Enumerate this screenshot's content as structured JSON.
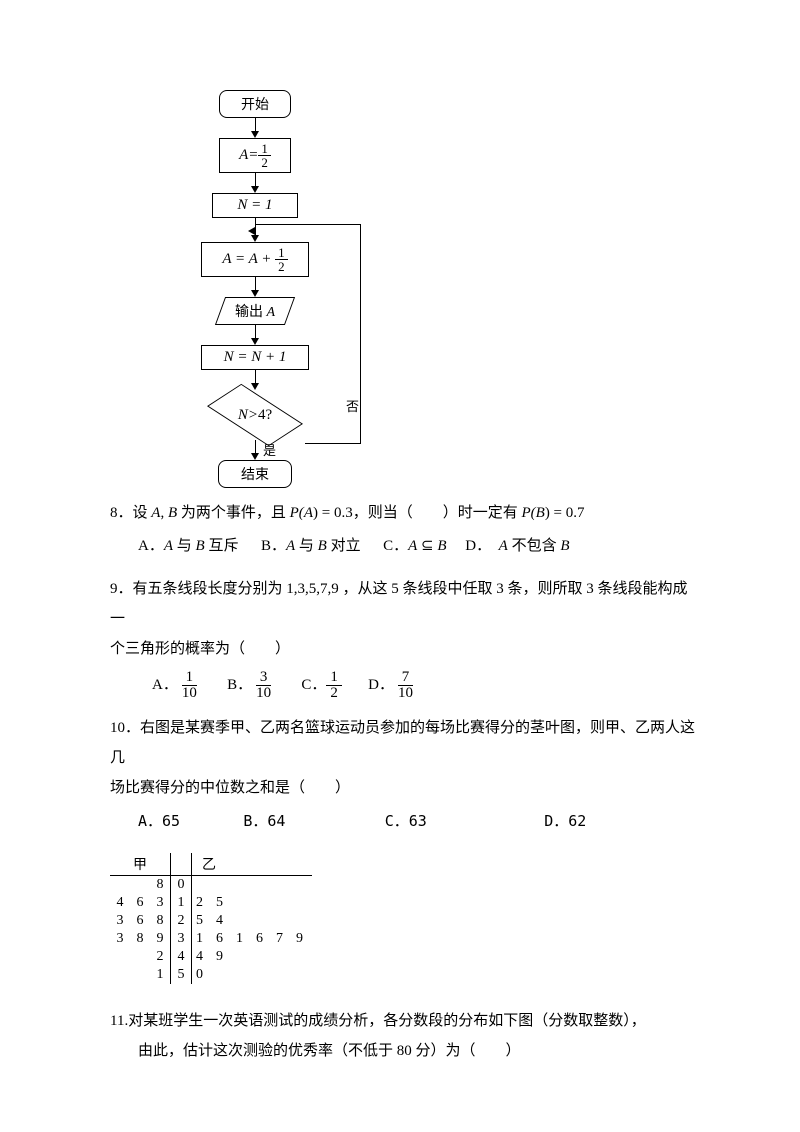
{
  "flowchart": {
    "start": "开始",
    "init_A_lhs": "A",
    "init_A_eq": "=",
    "init_A_num": "1",
    "init_A_den": "2",
    "init_N": "N = 1",
    "update_A_lhs": "A",
    "update_A_eq": " = ",
    "update_A_rhs_A": "A",
    "update_A_plus": " + ",
    "update_A_num": "1",
    "update_A_den": "2",
    "output_A_prefix": "输出 ",
    "output_A_var": "A",
    "inc_N": "N = N + 1",
    "cond_lhs": "N",
    "cond_op": " > ",
    "cond_rhs": "4",
    "cond_q": "?",
    "yes": "是",
    "no": "否",
    "end": "结束"
  },
  "q8": {
    "num": "8．",
    "pre": "设 ",
    "A": "A",
    "comma": ", ",
    "B": "B",
    "mid1": " 为两个事件，且 ",
    "PA": "P(",
    "Avar": "A",
    "PAend": ") = 0.3",
    "mid2": "，则当（　　）时一定有 ",
    "PB": "P(",
    "Bvar": "B",
    "PBend": ") = 0.7",
    "optA1": "A．",
    "optA2": "A",
    "optA3": " 与 ",
    "optA4": "B",
    "optA5": " 互斥",
    "optB1": "B．",
    "optB2": "A",
    "optB3": " 与 ",
    "optB4": "B",
    "optB5": " 对立",
    "optC1": "C．",
    "optC2": "A",
    "optC3": " ⊆ ",
    "optC4": "B",
    "optD1": "D．　",
    "optD2": "A",
    "optD3": " 不包含 ",
    "optD4": "B"
  },
  "q9": {
    "num": "9．",
    "text": "有五条线段长度分别为 1,3,5,7,9 ，从这 5 条线段中任取 3 条，则所取 3 条线段能构成一",
    "text2": "个三角形的概率为（　　）",
    "A_label": "A．",
    "A_num": "1",
    "A_den": "10",
    "B_label": "B．",
    "B_num": "3",
    "B_den": "10",
    "C_label": "C．",
    "C_num": "1",
    "C_den": "2",
    "D_label": "D．",
    "D_num": "7",
    "D_den": "10"
  },
  "q10": {
    "num": "10．",
    "text1": "右图是某赛季甲、乙两名篮球运动员参加的每场比赛得分的茎叶图，则甲、乙两人这几",
    "text2": "场比赛得分的中位数之和是（　　）",
    "A": "A．65",
    "B": "B．64",
    "C": "C．63",
    "D": "D．62"
  },
  "stemleaf": {
    "label_jia": "甲",
    "label_yi": "乙",
    "rows": [
      {
        "left": [
          "",
          "",
          "8"
        ],
        "stem": "0",
        "right": []
      },
      {
        "left": [
          "4",
          "6",
          "3"
        ],
        "stem": "1",
        "right": [
          "2",
          "5"
        ]
      },
      {
        "left": [
          "3",
          "6",
          "8"
        ],
        "stem": "2",
        "right": [
          "5",
          "4"
        ]
      },
      {
        "left": [
          "3",
          "8",
          "9"
        ],
        "stem": "3",
        "right": [
          "1",
          "6",
          "1",
          "6",
          "7",
          "9"
        ]
      },
      {
        "left": [
          "",
          "",
          "2"
        ],
        "stem": "4",
        "right": [
          "4",
          "9"
        ]
      },
      {
        "left": [
          "",
          "",
          "1"
        ],
        "stem": "5",
        "right": [
          "0"
        ]
      }
    ]
  },
  "q11": {
    "num": "11.",
    "text1": "对某班学生一次英语测试的成绩分析，各分数段的分布如下图（分数取整数），",
    "text2": "由此，估计这次测验的优秀率（不低于 80 分）为（　　）"
  },
  "colors": {
    "text": "#000000",
    "background": "#ffffff"
  }
}
